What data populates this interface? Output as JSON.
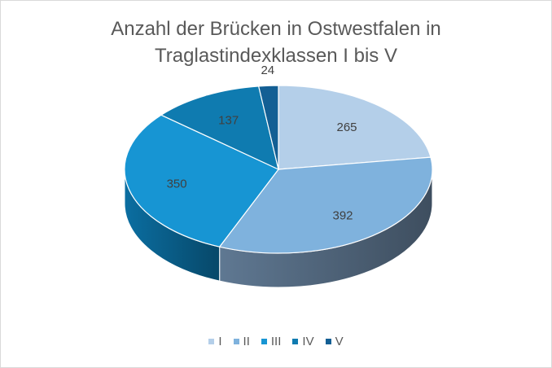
{
  "chart_data": {
    "type": "pie",
    "title_lines": [
      "Anzahl der Brücken in Ostwestfalen in",
      "Traglastindexklassen I bis V"
    ],
    "categories": [
      "I",
      "II",
      "III",
      "IV",
      "V"
    ],
    "values": [
      265,
      392,
      350,
      137,
      24
    ],
    "colors": [
      "#b4cfe9",
      "#7fb2dd",
      "#1795d3",
      "#0f7bb0",
      "#135f94"
    ],
    "side_colors": [
      "#8ea6bd",
      "#5f7892",
      "#0b6ea1",
      "#0c5f88",
      "#0d4a73"
    ],
    "legend_position": "bottom",
    "show_data_labels": true,
    "style": "3d"
  }
}
